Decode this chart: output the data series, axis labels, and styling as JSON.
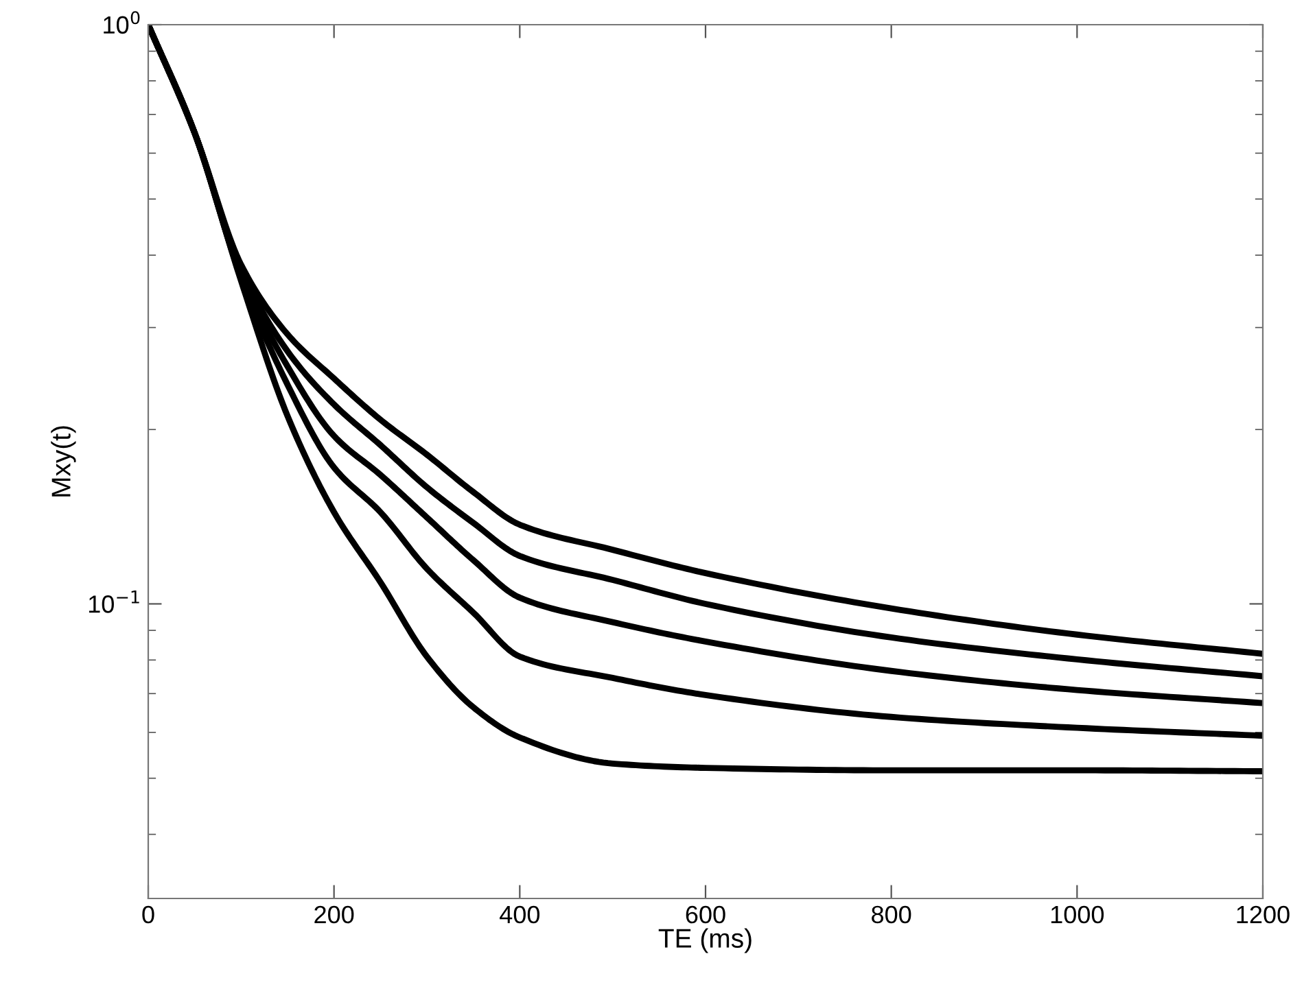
{
  "chart_data": {
    "type": "line",
    "xlabel": "TE (ms)",
    "ylabel": "Mxy(t)",
    "log": "y",
    "grid": false,
    "marker": "none",
    "line_style": "solid",
    "xlim": [
      0,
      1200
    ],
    "xticks": [
      0,
      200,
      400,
      600,
      800,
      1000,
      1200
    ],
    "ylim": [
      0.031,
      1
    ],
    "yticks": [
      {
        "value": 1,
        "label": "10$^{0}$"
      },
      {
        "value": 0.1,
        "label": "10$^{−1}$"
      }
    ],
    "x": [
      0,
      50,
      100,
      150,
      200,
      250,
      300,
      350,
      400,
      500,
      600,
      800,
      1000,
      1200
    ],
    "series": [
      {
        "color": "#000000",
        "values": [
          1,
          0.65,
          0.385,
          0.292,
          0.245,
          0.208,
          0.181,
          0.156,
          0.137,
          0.124,
          0.113,
          0.0982,
          0.0885,
          0.082
        ]
      },
      {
        "color": "#000000",
        "values": [
          1,
          0.65,
          0.378,
          0.273,
          0.221,
          0.188,
          0.159,
          0.138,
          0.121,
          0.11,
          0.1,
          0.0875,
          0.0802,
          0.075
        ]
      },
      {
        "color": "#000000",
        "values": [
          1,
          0.65,
          0.371,
          0.257,
          0.195,
          0.167,
          0.141,
          0.119,
          0.1025,
          0.093,
          0.0861,
          0.0766,
          0.071,
          0.0674
        ]
      },
      {
        "color": "#000000",
        "values": [
          1,
          0.65,
          0.366,
          0.239,
          0.172,
          0.144,
          0.115,
          0.0966,
          0.0811,
          0.0745,
          0.0696,
          0.0638,
          0.0611,
          0.0592
        ]
      },
      {
        "color": "#000000",
        "values": [
          1,
          0.65,
          0.361,
          0.211,
          0.144,
          0.109,
          0.0811,
          0.0663,
          0.0588,
          0.053,
          0.0521,
          0.0516,
          0.0516,
          0.0514
        ]
      }
    ]
  }
}
